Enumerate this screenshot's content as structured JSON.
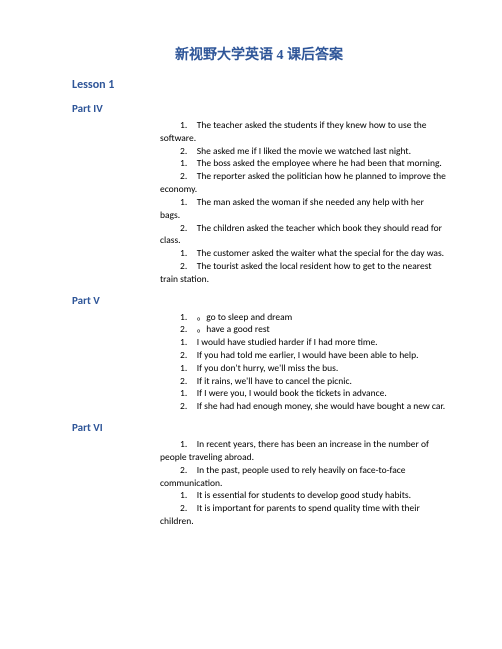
{
  "title": "新视野大学英语 4 课后答案",
  "lesson": "Lesson 1",
  "sections": {
    "part4": {
      "label": "Part IV",
      "items": [
        "1.　The teacher asked the students if they knew how to use the software.",
        "2.　She asked me if I liked the movie we watched last night.",
        "1.　The boss asked the employee where he had been that morning.",
        "2.　The reporter asked the politician how he planned to improve the economy.",
        "1.　The man asked the woman if she needed any help with her bags.",
        "2.　The children asked the teacher which book they should read for class.",
        "1.　The customer asked the waiter what the special for the day was.",
        "2.　The tourist asked the local resident how to get to the nearest train station."
      ]
    },
    "part5": {
      "label": "Part V",
      "items": [
        "1.　。go to sleep and dream",
        "2.　。have a good rest",
        "1.　I would have studied harder if I had more time.",
        "2.　If you had told me earlier, I would have been able to help.",
        "1.　If you don't hurry, we'll miss the bus.",
        "2.　If it rains, we'll have to cancel the picnic.",
        "1.　If I were you, I would book the tickets in advance.",
        "2.　If she had had enough money, she would have bought a new car."
      ]
    },
    "part6": {
      "label": "Part VI",
      "items": [
        "1.　In recent years, there has been an increase in the number of people traveling abroad.",
        "2.　In the past, people used to rely heavily on face-to-face communication.",
        "1.　It is essential for students to develop good study habits.",
        "2.　It is important for parents to spend quality time with their children."
      ]
    }
  },
  "colors": {
    "heading": "#2e5598",
    "text": "#000000",
    "background": "#ffffff"
  }
}
